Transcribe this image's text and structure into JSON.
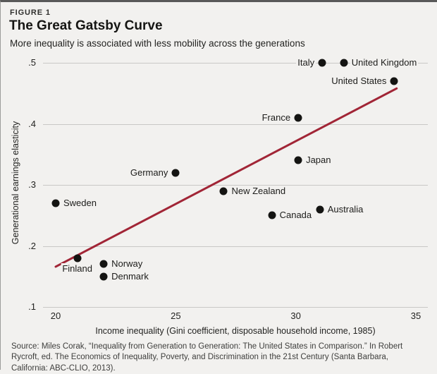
{
  "header": {
    "kicker": "FIGURE 1",
    "title": "The Great Gatsby Curve",
    "subtitle": "More inequality is associated with less mobility across the generations"
  },
  "source": {
    "text": "Source: Miles Corak, “Inequality from Generation to Generation: The United States in Comparison.” In Robert Rycroft, ed. The Economics of Inequality, Poverty, and Discrimination in the 21st Century (Santa Barbara, California: ABC-CLIO, 2013)."
  },
  "colors": {
    "background": "#f2f1ef",
    "top_bar": "#595959",
    "gridline": "#c9c8c6",
    "dot": "#141412",
    "trend_red": "#a12536",
    "text": "#1d1d1b"
  },
  "chart_data": {
    "type": "scatter",
    "title": "The Great Gatsby Curve",
    "xlabel": "Income inequality (Gini coefficient, disposable household income, 1985)",
    "ylabel": "Generational earnings elasticity",
    "xlim": [
      19.5,
      35.5
    ],
    "ylim": [
      0.1,
      0.5
    ],
    "grid": "horizontal-only",
    "x_ticks": [
      {
        "value": 20,
        "label": "20"
      },
      {
        "value": 25,
        "label": "25"
      },
      {
        "value": 30,
        "label": "30"
      },
      {
        "value": 35,
        "label": "35"
      }
    ],
    "y_ticks": [
      {
        "value": 0.5,
        "label": ".5"
      },
      {
        "value": 0.4,
        "label": ".4"
      },
      {
        "value": 0.3,
        "label": ".3"
      },
      {
        "value": 0.2,
        "label": ".2"
      },
      {
        "value": 0.1,
        "label": ".1"
      }
    ],
    "points": [
      {
        "name": "Sweden",
        "x": 20.0,
        "y": 0.27,
        "label_side": "right"
      },
      {
        "name": "Finland",
        "x": 20.9,
        "y": 0.18,
        "label_side": "below"
      },
      {
        "name": "Norway",
        "x": 22.0,
        "y": 0.17,
        "label_side": "right"
      },
      {
        "name": "Denmark",
        "x": 22.0,
        "y": 0.15,
        "label_side": "right"
      },
      {
        "name": "Germany",
        "x": 25.0,
        "y": 0.32,
        "label_side": "left"
      },
      {
        "name": "New Zealand",
        "x": 27.0,
        "y": 0.29,
        "label_side": "right"
      },
      {
        "name": "Canada",
        "x": 29.0,
        "y": 0.25,
        "label_side": "right"
      },
      {
        "name": "Japan",
        "x": 30.1,
        "y": 0.34,
        "label_side": "right"
      },
      {
        "name": "France",
        "x": 30.1,
        "y": 0.41,
        "label_side": "left"
      },
      {
        "name": "Australia",
        "x": 31.0,
        "y": 0.26,
        "label_side": "right"
      },
      {
        "name": "Italy",
        "x": 31.1,
        "y": 0.5,
        "label_side": "left"
      },
      {
        "name": "United Kingdom",
        "x": 32.0,
        "y": 0.5,
        "label_side": "right"
      },
      {
        "name": "United States",
        "x": 34.1,
        "y": 0.47,
        "label_side": "left"
      }
    ],
    "trend_line": {
      "x1": 20.0,
      "y1": 0.166,
      "x2": 34.2,
      "y2": 0.458
    }
  }
}
